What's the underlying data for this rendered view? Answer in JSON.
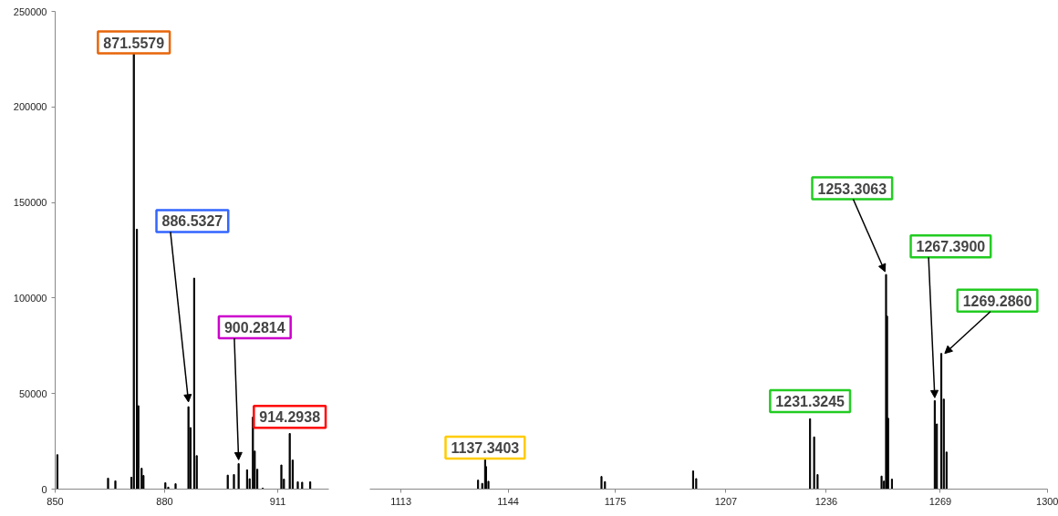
{
  "chart_data": [
    {
      "type": "bar",
      "color": "#000000",
      "grid": false,
      "x": [
        850.6,
        864.5,
        866.5,
        870.9,
        871.5579,
        872.4,
        872.8,
        873.7,
        874.2,
        880.2,
        881.0,
        883.0,
        886.5327,
        887.1,
        888.1,
        888.8,
        897.3,
        899.0,
        900.2814,
        902.6,
        903.3,
        904.2,
        904.7,
        905.4,
        906.9,
        912.0,
        912.7,
        914.2938,
        915.1,
        916.5,
        917.7,
        919.9
      ],
      "values": [
        18000,
        5700,
        4300,
        6200,
        228000,
        136000,
        43600,
        10900,
        7100,
        3300,
        1000,
        2800,
        43100,
        32200,
        110400,
        17500,
        7300,
        7600,
        13300,
        10100,
        5400,
        37700,
        19900,
        10400,
        500,
        12600,
        5200,
        29100,
        15200,
        3800,
        3600,
        3800
      ],
      "xlim": [
        850,
        925
      ],
      "xticks": [
        850,
        880,
        911
      ],
      "ylim": [
        0,
        250000
      ],
      "yticks": [
        0,
        50000,
        100000,
        150000,
        200000,
        250000
      ],
      "annotations": [
        {
          "text": "871.5579",
          "x": 871.5579,
          "y": 228000
        },
        {
          "text": "886.5327",
          "x": 886.5327,
          "y": 43100
        },
        {
          "text": "900.2814",
          "x": 900.2814,
          "y": 13300
        },
        {
          "text": "914.2938",
          "x": 914.2938,
          "y": 29100
        }
      ]
    },
    {
      "type": "bar",
      "color": "#000000",
      "grid": false,
      "tick_labels": "x",
      "x": [
        1135.3,
        1136.5,
        1137.3403,
        1137.6,
        1138.3,
        1171.0,
        1172.0,
        1197.5,
        1198.4,
        1231.3245,
        1232.5,
        1233.5,
        1252.0,
        1252.7,
        1253.3063,
        1253.6,
        1253.9,
        1255.0,
        1267.39,
        1268.0,
        1269.286,
        1270.0,
        1270.8
      ],
      "values": [
        4700,
        3000,
        16000,
        11800,
        4100,
        6600,
        3900,
        9500,
        5500,
        36800,
        27300,
        7600,
        6800,
        4200,
        112300,
        90500,
        37100,
        5200,
        46300,
        34100,
        71000,
        47100,
        19400
      ],
      "xlim": [
        1104,
        1300
      ],
      "xticks": [
        1113,
        1144,
        1175,
        1207,
        1236,
        1269,
        1300
      ],
      "ylim": [
        0,
        250000
      ],
      "annotations": [
        {
          "text": "1137.3403",
          "x": 1137.3403,
          "y": 16000
        },
        {
          "text": "1231.3245",
          "x": 1231.3245,
          "y": 36800
        },
        {
          "text": "1253.3063",
          "x": 1253.3063,
          "y": 112300
        },
        {
          "text": "1267.3900",
          "x": 1267.39,
          "y": 46300
        },
        {
          "text": "1269.2860",
          "x": 1269.286,
          "y": 71000
        }
      ]
    }
  ]
}
